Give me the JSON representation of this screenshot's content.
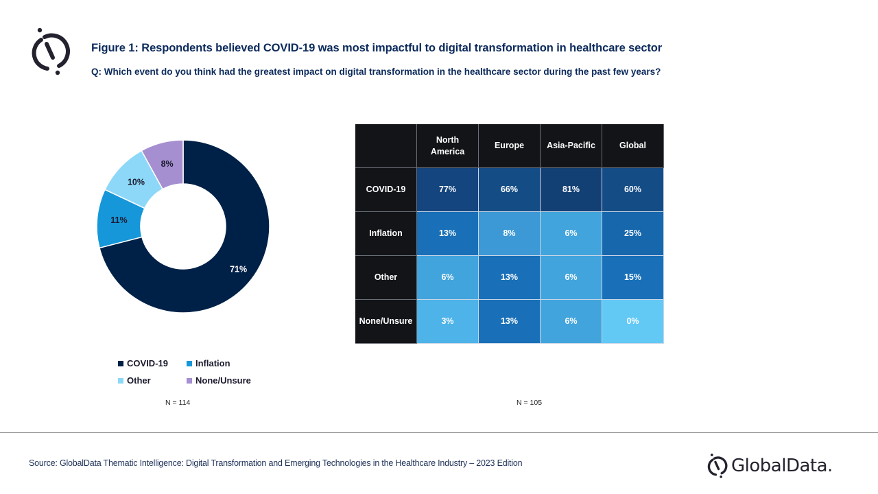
{
  "header": {
    "title": "Figure 1: Respondents believed COVID-19 was most impactful to digital transformation in healthcare sector",
    "question": "Q: Which event do you think had the greatest impact on digital transformation in the healthcare sector during the past few years?",
    "logo_icon": "globaldata-logo-mark-icon"
  },
  "chart_data": [
    {
      "type": "pie",
      "variant": "donut",
      "title": "",
      "categories": [
        "COVID-19",
        "Inflation",
        "Other",
        "None/Unsure"
      ],
      "values": [
        71,
        11,
        10,
        8
      ],
      "labels": [
        "71%",
        "11%",
        "10%",
        "8%"
      ],
      "colors": [
        "#002147",
        "#1597d9",
        "#8dd8f8",
        "#a58fd1"
      ],
      "label_colors": [
        "#ffffff",
        "#1a1a2e",
        "#1a1a2e",
        "#1a1a2e"
      ],
      "start": "12 o'clock, clockwise",
      "legend": {
        "placement": "bottom",
        "entries": [
          "COVID-19",
          "Inflation",
          "Other",
          "None/Unsure"
        ]
      },
      "sample_size": "N = 114"
    },
    {
      "type": "heatmap",
      "title": "",
      "columns": [
        "North America",
        "Europe",
        "Asia-Pacific",
        "Global"
      ],
      "rows": [
        "COVID-19",
        "Inflation",
        "Other",
        "None/Unsure"
      ],
      "values": [
        [
          77,
          66,
          81,
          60
        ],
        [
          13,
          8,
          6,
          25
        ],
        [
          6,
          13,
          6,
          15
        ],
        [
          3,
          13,
          6,
          0
        ]
      ],
      "cell_colors": [
        [
          "#14457e",
          "#144c86",
          "#123f74",
          "#144c86"
        ],
        [
          "#1970b8",
          "#3c99d6",
          "#42a4dc",
          "#1767ad"
        ],
        [
          "#42a4dc",
          "#1970b8",
          "#42a4dc",
          "#1970b8"
        ],
        [
          "#4db3e8",
          "#1970b8",
          "#42a4dc",
          "#62c9f5"
        ]
      ],
      "unit": "%",
      "sample_size": "N = 105"
    }
  ],
  "table": {
    "corner": "",
    "columns": [
      "North\nAmerica",
      "Europe",
      "Asia-Pacific",
      "Global"
    ],
    "rows": [
      {
        "label": "COVID-19",
        "cells": [
          "77%",
          "66%",
          "81%",
          "60%"
        ]
      },
      {
        "label": "Inflation",
        "cells": [
          "13%",
          "8%",
          "6%",
          "25%"
        ]
      },
      {
        "label": "Other",
        "cells": [
          "6%",
          "13%",
          "6%",
          "15%"
        ]
      },
      {
        "label": "None/Unsure",
        "cells": [
          "3%",
          "13%",
          "6%",
          "0%"
        ]
      }
    ]
  },
  "legend": {
    "items": [
      {
        "label": "COVID-19",
        "color": "#002147"
      },
      {
        "label": "Inflation",
        "color": "#1597d9"
      },
      {
        "label": "Other",
        "color": "#8dd8f8"
      },
      {
        "label": "None/Unsure",
        "color": "#a58fd1"
      }
    ]
  },
  "notes": {
    "n_left": "N = 114",
    "n_right": "N = 105"
  },
  "footer": {
    "source": "Source: GlobalData Thematic Intelligence: Digital Transformation and Emerging Technologies in the Healthcare Industry – 2023  Edition",
    "brand": "GlobalData.",
    "brand_icon": "globaldata-logo-mark-icon"
  }
}
